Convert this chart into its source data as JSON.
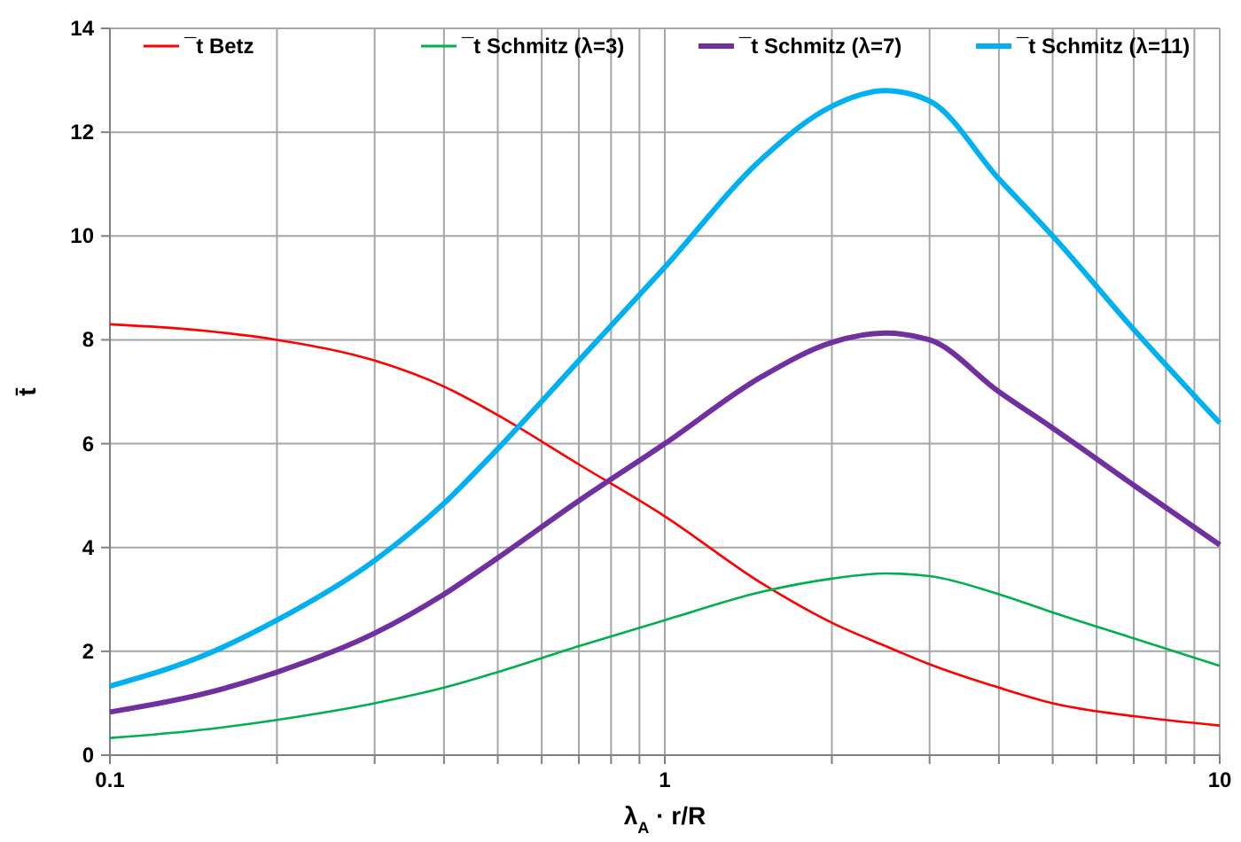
{
  "chart_data": {
    "type": "line",
    "xlabel": "λ$_{A}$ · r/R",
    "ylabel": "t̄",
    "log": "x",
    "grid": true,
    "legend": "top",
    "marker": "none",
    "line_style": "solid",
    "x": [
      0.1,
      0.15,
      0.2,
      0.3,
      0.4,
      0.5,
      0.7,
      1,
      1.5,
      2,
      2.5,
      3,
      4,
      5,
      7,
      10
    ],
    "xlim": [
      0.1,
      10
    ],
    "xticks": [
      0.1,
      {
        "value": 0.2,
        "label": null
      },
      {
        "value": 0.3,
        "label": null
      },
      {
        "value": 0.4,
        "label": null
      },
      {
        "value": 0.5,
        "label": null
      },
      {
        "value": 0.6,
        "label": null
      },
      {
        "value": 0.7,
        "label": null
      },
      {
        "value": 0.8,
        "label": null
      },
      {
        "value": 0.9,
        "label": null
      },
      1,
      {
        "value": 2,
        "label": null
      },
      {
        "value": 3,
        "label": null
      },
      {
        "value": 4,
        "label": null
      },
      {
        "value": 5,
        "label": null
      },
      {
        "value": 6,
        "label": null
      },
      {
        "value": 7,
        "label": null
      },
      {
        "value": 8,
        "label": null
      },
      {
        "value": 9,
        "label": null
      },
      10
    ],
    "ylim": [
      0,
      14
    ],
    "yticks": [
      0,
      2,
      4,
      6,
      8,
      10,
      12,
      14
    ],
    "series": [
      {
        "name": "¯t Betz",
        "color": "#ff0000",
        "values": [
          8.3,
          8.17,
          8.0,
          7.6,
          7.1,
          6.55,
          5.6,
          4.6,
          3.3,
          2.55,
          2.1,
          1.75,
          1.3,
          1.0,
          0.75,
          0.57
        ]
      },
      {
        "name": "¯t Schmitz (λ=3)",
        "color": "#00b050",
        "values": [
          0.33,
          0.5,
          0.68,
          1.0,
          1.3,
          1.6,
          2.1,
          2.6,
          3.15,
          3.4,
          3.5,
          3.45,
          3.1,
          2.75,
          2.25,
          1.72
        ]
      },
      {
        "name": "¯t Schmitz (λ=7)",
        "color": "#7030a0",
        "values": [
          0.83,
          1.2,
          1.6,
          2.35,
          3.1,
          3.8,
          4.9,
          6.0,
          7.3,
          7.95,
          8.13,
          8.0,
          7.0,
          6.3,
          5.2,
          4.05
        ]
      },
      {
        "name": "¯t Schmitz (λ=11)",
        "color": "#00b0f0",
        "values": [
          1.33,
          1.95,
          2.6,
          3.75,
          4.85,
          5.9,
          7.6,
          9.4,
          11.5,
          12.5,
          12.8,
          12.6,
          11.1,
          10.0,
          8.2,
          6.4
        ]
      }
    ]
  }
}
